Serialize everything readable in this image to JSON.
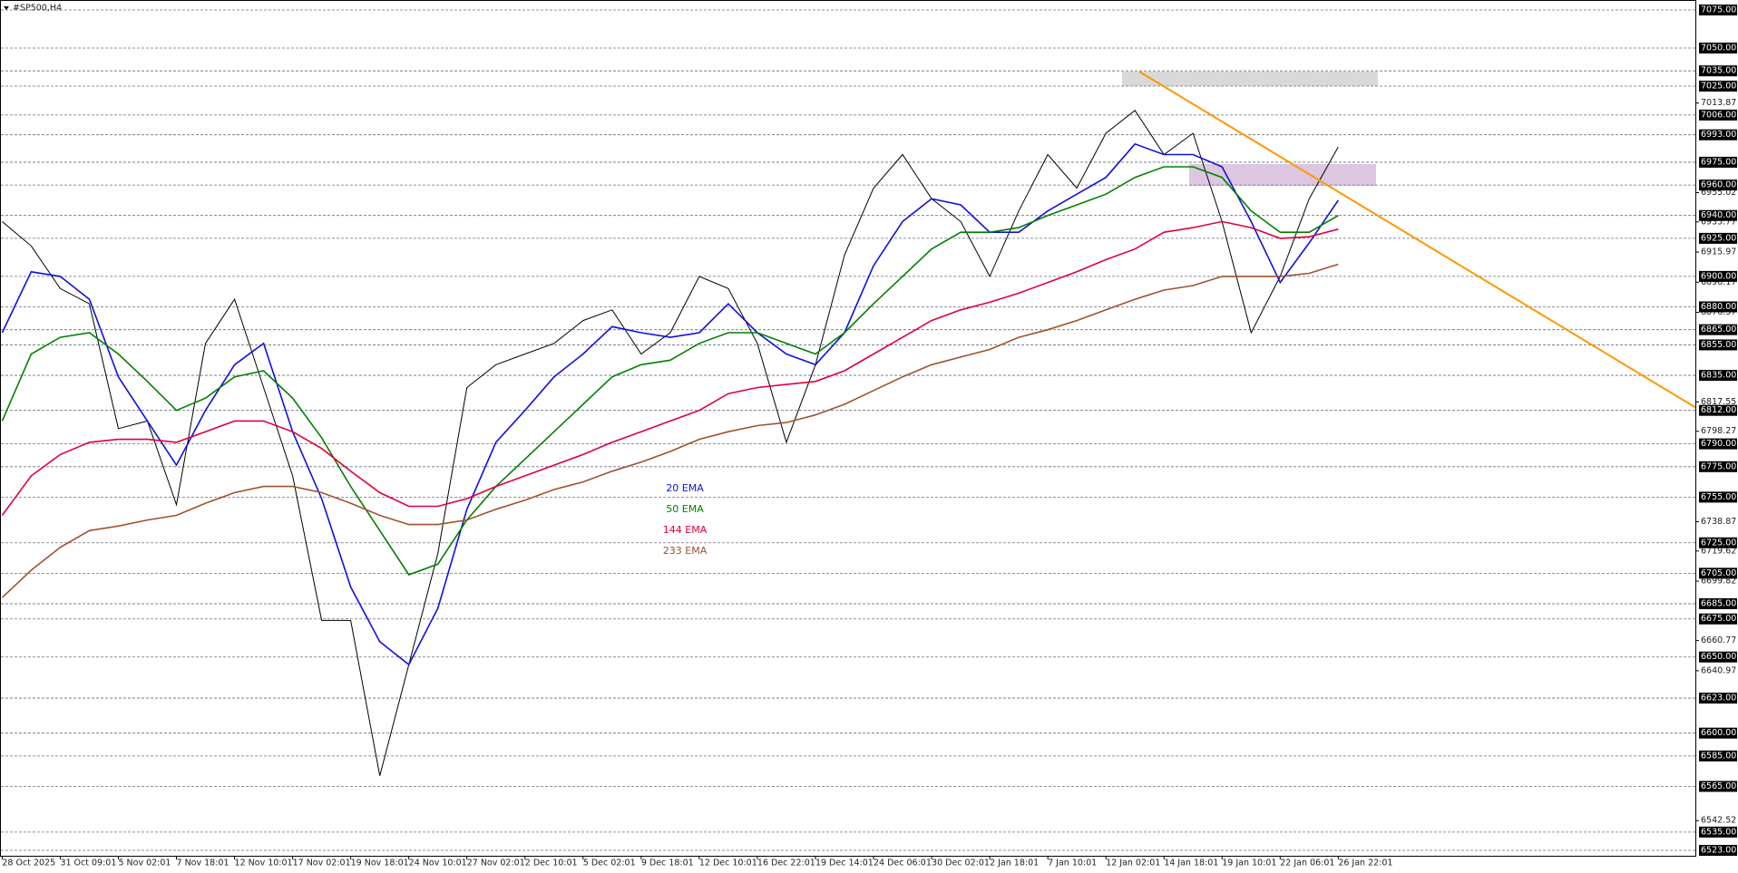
{
  "chart_data": {
    "type": "line",
    "title": "#SP500,H4",
    "categories": [
      "28 Oct 2025",
      null,
      "31 Oct 09:01",
      null,
      "5 Nov 02:01",
      null,
      "7 Nov 18:01",
      null,
      "12 Nov 10:01",
      null,
      "17 Nov 02:01",
      null,
      "19 Nov 18:01",
      null,
      "24 Nov 10:01",
      null,
      "27 Nov 02:01",
      null,
      "2 Dec 10:01",
      null,
      "5 Dec 02:01",
      null,
      "9 Dec 18:01",
      null,
      "12 Dec 10:01",
      null,
      "16 Dec 22:01",
      null,
      "19 Dec 14:01",
      null,
      "24 Dec 06:01",
      null,
      "30 Dec 02:01",
      null,
      "2 Jan 18:01",
      null,
      "7 Jan 10:01",
      null,
      "12 Jan 02:01",
      null,
      "14 Jan 18:01",
      null,
      "19 Jan 10:01",
      null,
      "22 Jan 06:01",
      null,
      "26 Jan 22:01"
    ],
    "series": [
      {
        "color": "#000000",
        "values": [
          6936,
          6920,
          6892,
          6882,
          6800,
          6805,
          6750,
          6856,
          6885,
          6827,
          6769,
          6674,
          6674,
          6572,
          6645,
          6718,
          6827,
          6842,
          6849,
          6856,
          6871,
          6878,
          6849,
          6863,
          6900,
          6892,
          6856,
          6791,
          6842,
          6914,
          6958,
          6980,
          6951,
          6936,
          6900,
          6943,
          6980,
          6958,
          6994,
          7009,
          6980,
          6994,
          6936,
          6863,
          6900,
          6951,
          6985
        ]
      },
      {
        "name": "20 EMA",
        "color": "#1010e0",
        "values": [
          6863,
          6903,
          6900,
          6885,
          6834,
          6805,
          6776,
          6812,
          6842,
          6856,
          6798,
          6754,
          6696,
          6660,
          6645,
          6682,
          6747,
          6791,
          6812,
          6834,
          6849,
          6867,
          6863,
          6860,
          6863,
          6882,
          6863,
          6849,
          6842,
          6863,
          6907,
          6936,
          6951,
          6947,
          6929,
          6929,
          6943,
          6954,
          6965,
          6987,
          6980,
          6980,
          6972,
          6936,
          6896,
          6922,
          6950
        ]
      },
      {
        "name": "50 EMA",
        "color": "#008000",
        "values": [
          6805,
          6849,
          6860,
          6863,
          6849,
          6831,
          6812,
          6820,
          6834,
          6838,
          6820,
          6794,
          6762,
          6733,
          6704,
          6711,
          6740,
          6762,
          6780,
          6798,
          6816,
          6834,
          6842,
          6845,
          6856,
          6863,
          6863,
          6856,
          6849,
          6863,
          6882,
          6900,
          6918,
          6929,
          6929,
          6932,
          6940,
          6947,
          6954,
          6965,
          6972,
          6972,
          6965,
          6943,
          6929,
          6929,
          6940
        ]
      },
      {
        "name": "144 EMA",
        "color": "#e0003a",
        "values": [
          6743,
          6769,
          6783,
          6791,
          6793,
          6793,
          6791,
          6798,
          6805,
          6805,
          6798,
          6787,
          6772,
          6758,
          6749,
          6749,
          6754,
          6762,
          6769,
          6776,
          6783,
          6791,
          6798,
          6805,
          6812,
          6823,
          6827,
          6829,
          6831,
          6838,
          6849,
          6860,
          6871,
          6878,
          6883,
          6889,
          6896,
          6903,
          6911,
          6918,
          6929,
          6932,
          6936,
          6932,
          6925,
          6926,
          6931
        ]
      },
      {
        "name": "233 EMA",
        "color": "#a0522d",
        "values": [
          6689,
          6707,
          6722,
          6733,
          6736,
          6740,
          6743,
          6751,
          6758,
          6762,
          6762,
          6758,
          6751,
          6743,
          6737,
          6737,
          6740,
          6747,
          6753,
          6760,
          6765,
          6772,
          6778,
          6785,
          6793,
          6798,
          6802,
          6804,
          6809,
          6816,
          6825,
          6834,
          6842,
          6847,
          6852,
          6860,
          6865,
          6871,
          6878,
          6885,
          6891,
          6894,
          6900,
          6900,
          6900,
          6902,
          6908
        ]
      }
    ],
    "ylim": [
      6523,
      7075
    ],
    "yticks": [
      7013.87,
      6955.02,
      6935.77,
      6915.97,
      6896.17,
      6876.37,
      6817.55,
      6798.27,
      6738.87,
      6719.62,
      6699.82,
      6660.77,
      6640.97,
      6542.52
    ],
    "levels": [
      {
        "value": 7075,
        "label": "7075.00"
      },
      {
        "value": 7050,
        "label": "7050.00"
      },
      {
        "value": 7035,
        "label": "7035.00"
      },
      {
        "value": 7025,
        "label": "7025.00"
      },
      {
        "value": 7006,
        "label": "7006.00"
      },
      {
        "value": 6993,
        "label": "6993.00"
      },
      {
        "value": 6975,
        "label": "6975.00"
      },
      {
        "value": 6960,
        "label": "6960.00"
      },
      {
        "value": 6940,
        "label": "6940.00"
      },
      {
        "value": 6925,
        "label": "6925.00"
      },
      {
        "value": 6900,
        "label": "6900.00"
      },
      {
        "value": 6880,
        "label": "6880.00"
      },
      {
        "value": 6865,
        "label": "6865.00"
      },
      {
        "value": 6855,
        "label": "6855.00"
      },
      {
        "value": 6835,
        "label": "6835.00"
      },
      {
        "value": 6812,
        "label": "6812.00"
      },
      {
        "value": 6790,
        "label": "6790.00"
      },
      {
        "value": 6775,
        "label": "6775.00"
      },
      {
        "value": 6755,
        "label": "6755.00"
      },
      {
        "value": 6725,
        "label": "6725.00"
      },
      {
        "value": 6705,
        "label": "6705.00"
      },
      {
        "value": 6685,
        "label": "6685.00"
      },
      {
        "value": 6675,
        "label": "6675.00"
      },
      {
        "value": 6650,
        "label": "6650.00"
      },
      {
        "value": 6623,
        "label": "6623.00"
      },
      {
        "value": 6600,
        "label": "6600.00"
      },
      {
        "value": 6585,
        "label": "6585.00"
      },
      {
        "value": 6565,
        "label": "6565.00"
      },
      {
        "value": 6535,
        "label": "6535.00"
      },
      {
        "value": 6523,
        "label": "6523.00"
      }
    ]
  }
}
